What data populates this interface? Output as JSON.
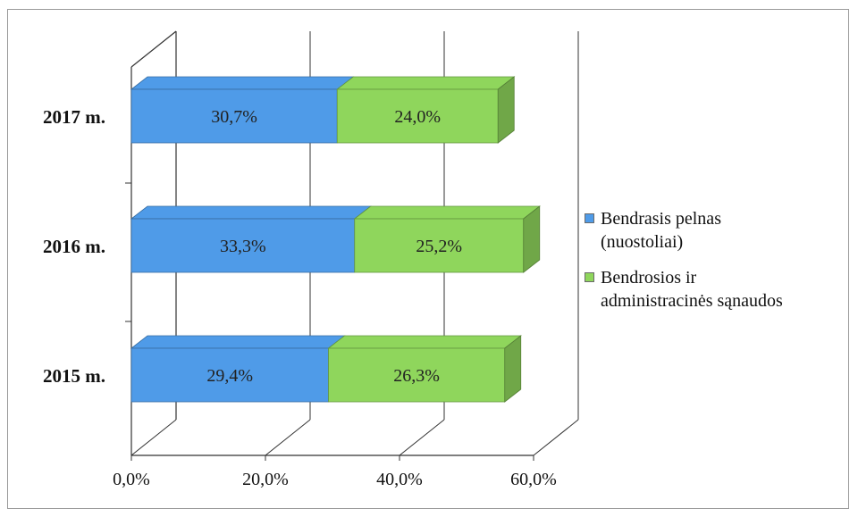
{
  "chart_data": {
    "type": "bar",
    "orientation": "horizontal",
    "stacked": true,
    "three_d": true,
    "categories": [
      "2017 m.",
      "2016 m.",
      "2015 m."
    ],
    "series": [
      {
        "name": "Bendrasis pelnas (nuostoliai)",
        "values": [
          30.7,
          33.3,
          29.4
        ],
        "labels": [
          "30,7%",
          "33,3%",
          "29,4%"
        ],
        "color": "#4f9be8"
      },
      {
        "name": "Bendrosios ir administracinės sąnaudos",
        "values": [
          24.0,
          25.2,
          26.3
        ],
        "labels": [
          "24,0%",
          "25,2%",
          "26,3%"
        ],
        "color": "#8fd65c"
      }
    ],
    "x_ticks": [
      "0,0%",
      "20,0%",
      "40,0%",
      "60,0%"
    ],
    "xlim": [
      0,
      60
    ],
    "grid": true,
    "legend_position": "right"
  },
  "legend": {
    "items": [
      {
        "lines": [
          "Bendrasis pelnas",
          "(nuostoliai)"
        ],
        "color": "#4f9be8"
      },
      {
        "lines": [
          "Bendrosios ir",
          "administracinės sąnaudos"
        ],
        "color": "#8fd65c"
      }
    ]
  }
}
